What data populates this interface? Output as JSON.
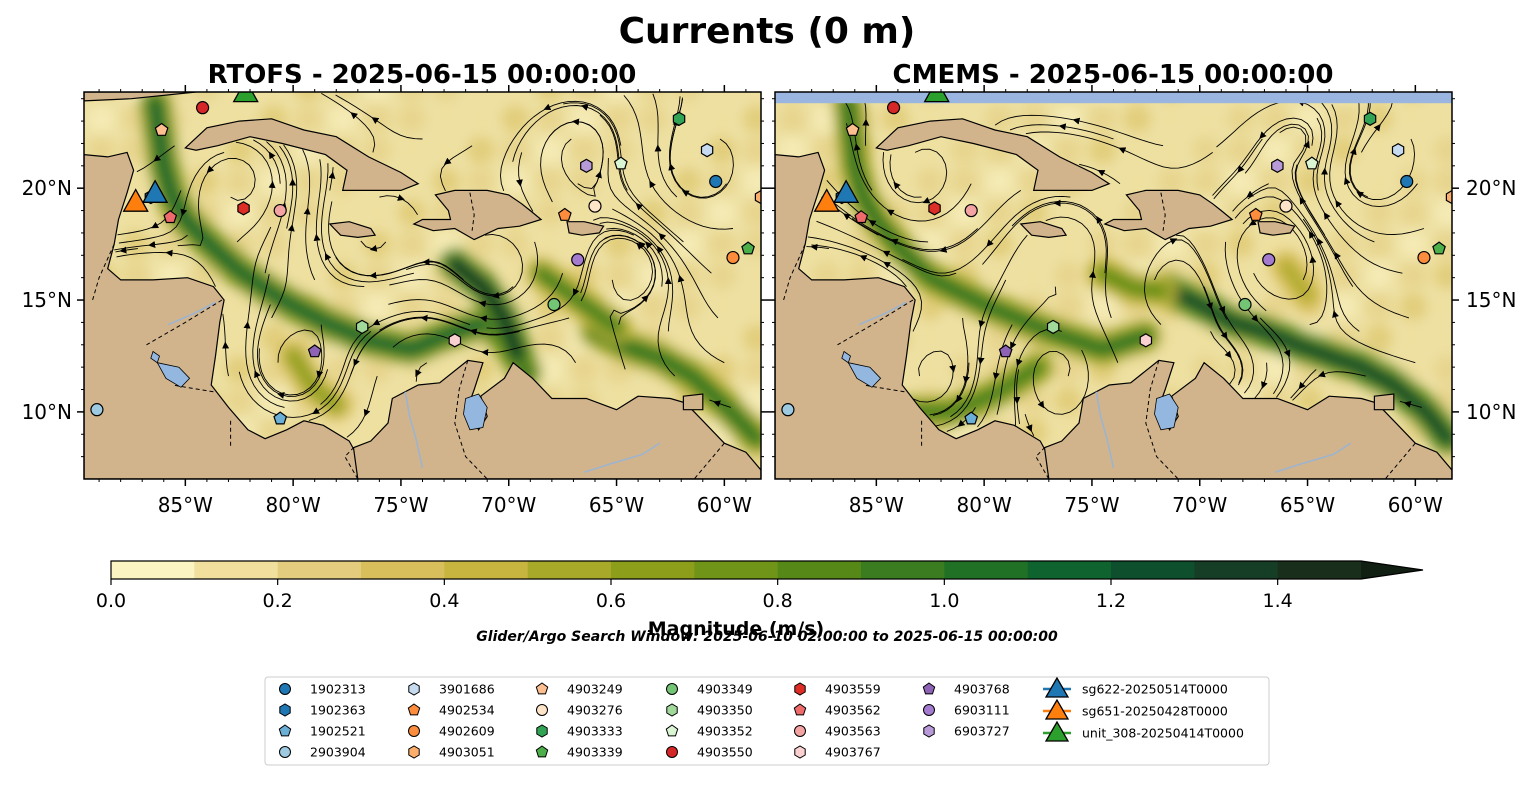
{
  "figure": {
    "title": "Currents (0 m)",
    "search_window": "Glider/Argo Search Window: 2025-06-10 02:00:00 to 2025-06-15 00:00:00"
  },
  "chart_data": {
    "type": "heatmap",
    "variable": "current magnitude",
    "panels": [
      {
        "title": "RTOFS - 2025-06-15 00:00:00",
        "extent": {
          "lon": [
            -89.7,
            -58.3
          ],
          "lat": [
            7.0,
            24.3
          ]
        },
        "xticks": [
          "85°W",
          "80°W",
          "75°W",
          "70°W",
          "65°W",
          "60°W"
        ],
        "yticks": [
          "10°N",
          "15°N",
          "20°N"
        ],
        "ytick_side": "left",
        "strong_jets": [
          {
            "path": [
              [
                -86.4,
                23.8
              ],
              [
                -86.0,
                21.0
              ],
              [
                -85.6,
                19.6
              ],
              [
                -85.0,
                18.6
              ],
              [
                -84.0,
                17.6
              ],
              [
                -82.5,
                16.3
              ],
              [
                -80.5,
                15.0
              ],
              [
                -78.5,
                14.0
              ],
              [
                -76.5,
                13.2
              ],
              [
                -74.5,
                12.8
              ],
              [
                -72.5,
                13.6
              ],
              [
                -71.0,
                14.0
              ],
              [
                -70.0,
                13.0
              ],
              [
                -69.2,
                11.8
              ]
            ],
            "m": 1.2
          },
          {
            "path": [
              [
                -72.5,
                16.6
              ],
              [
                -71.2,
                15.6
              ],
              [
                -70.2,
                14.2
              ],
              [
                -69.6,
                12.6
              ]
            ],
            "m": 1.45
          },
          {
            "path": [
              [
                -66.0,
                13.6
              ],
              [
                -64.5,
                12.9
              ],
              [
                -63.0,
                12.4
              ],
              [
                -61.5,
                11.6
              ],
              [
                -60.0,
                10.3
              ],
              [
                -58.5,
                8.8
              ]
            ],
            "m": 1.0
          },
          {
            "path": [
              [
                -68.5,
                16.2
              ],
              [
                -66.5,
                14.8
              ],
              [
                -65.0,
                13.8
              ]
            ],
            "m": 0.9
          },
          {
            "path": [
              [
                -88.5,
                12.0
              ],
              [
                -87.5,
                10.5
              ],
              [
                -87.0,
                8.5
              ]
            ],
            "m": 0.75
          },
          {
            "path": [
              [
                -80.0,
                12.5
              ],
              [
                -79.0,
                11.0
              ],
              [
                -78.0,
                10.3
              ]
            ],
            "m": 0.7
          }
        ],
        "land": {
          "dark_band_lat_min": 24.3
        }
      },
      {
        "title": "CMEMS - 2025-06-15 00:00:00",
        "extent": {
          "lon": [
            -89.7,
            -58.3
          ],
          "lat": [
            7.0,
            24.3
          ]
        },
        "xticks": [
          "85°W",
          "80°W",
          "75°W",
          "70°W",
          "65°W",
          "60°W"
        ],
        "yticks": [
          "10°N",
          "15°N",
          "20°N"
        ],
        "ytick_side": "right",
        "strong_jets": [
          {
            "path": [
              [
                -86.3,
                23.8
              ],
              [
                -86.0,
                21.0
              ],
              [
                -85.6,
                19.6
              ],
              [
                -85.0,
                18.6
              ],
              [
                -84.0,
                17.4
              ],
              [
                -82.5,
                16.0
              ],
              [
                -80.0,
                14.8
              ],
              [
                -77.0,
                13.6
              ],
              [
                -74.5,
                12.8
              ],
              [
                -72.5,
                13.4
              ]
            ],
            "m": 1.0
          },
          {
            "path": [
              [
                -87.5,
                11.6
              ],
              [
                -86.2,
                10.6
              ],
              [
                -84.0,
                10.0
              ],
              [
                -81.5,
                10.0
              ],
              [
                -79.5,
                10.8
              ],
              [
                -77.5,
                12.0
              ]
            ],
            "m": 0.95
          },
          {
            "path": [
              [
                -71.5,
                15.5
              ],
              [
                -70.0,
                14.8
              ],
              [
                -68.5,
                14.0
              ],
              [
                -67.0,
                13.6
              ],
              [
                -65.5,
                13.0
              ],
              [
                -64.0,
                12.5
              ],
              [
                -62.5,
                12.0
              ],
              [
                -61.0,
                11.2
              ],
              [
                -59.5,
                10.0
              ],
              [
                -58.5,
                8.8
              ]
            ],
            "m": 1.3
          },
          {
            "path": [
              [
                -74.5,
                16.2
              ],
              [
                -73.0,
                15.5
              ],
              [
                -71.8,
                15.4
              ]
            ],
            "m": 0.85
          },
          {
            "path": [
              [
                -66.0,
                16.5
              ],
              [
                -65.0,
                15.2
              ]
            ],
            "m": 0.6
          }
        ],
        "nodata_band_lat_min": 23.8
      }
    ],
    "colorbar": {
      "title": "Magnitude (m/s)",
      "min": 0.0,
      "max": 1.5,
      "step": 0.1,
      "extend": "max",
      "ticks": [
        "0.0",
        "0.2",
        "0.4",
        "0.6",
        "0.8",
        "1.0",
        "1.2",
        "1.4"
      ],
      "colormap": [
        "#fbf3c2",
        "#f1e09d",
        "#e4cc7e",
        "#d8bf5c",
        "#c7b53f",
        "#a9a929",
        "#8d9e1a",
        "#6f9417",
        "#558817",
        "#3b7c20",
        "#207026",
        "#0f632e",
        "#0e502d",
        "#163e26",
        "#1a2e1c",
        "#111f12"
      ]
    },
    "map_colors": {
      "land": "#d2b48c",
      "water": "#94b7e0",
      "river": "#9db4cf",
      "nodata": "#9ab5df"
    },
    "gliders": [
      {
        "name": "sg622-20250514T0000",
        "color": "#1f77b4",
        "lon": -86.4,
        "lat": 19.8
      },
      {
        "name": "sg651-20250428T0000",
        "color": "#ff7f0e",
        "lon": -87.3,
        "lat": 19.4
      },
      {
        "name": "unit_308-20250414T0000",
        "color": "#2ca02c",
        "lon": -82.2,
        "lat": 24.3
      }
    ],
    "floats": [
      {
        "name": "1902313",
        "marker": "circle",
        "color": "#1f77b4",
        "lon": -60.4,
        "lat": 20.3
      },
      {
        "name": "1902363",
        "marker": "hexagon",
        "color": "#1f77b4",
        "lon": -86.6,
        "lat": 19.6
      },
      {
        "name": "1902521",
        "marker": "pentagon",
        "color": "#6baed6",
        "lon": -80.6,
        "lat": 9.7
      },
      {
        "name": "2903904",
        "marker": "circle",
        "color": "#9ecae1",
        "lon": -89.1,
        "lat": 10.1
      },
      {
        "name": "3901686",
        "marker": "hexagon",
        "color": "#c6dbef",
        "lon": -60.8,
        "lat": 21.7
      },
      {
        "name": "4902534",
        "marker": "pentagon",
        "color": "#fd8d3c",
        "lon": -67.4,
        "lat": 18.8
      },
      {
        "name": "4902609",
        "marker": "circle",
        "color": "#fd8d3c",
        "lon": -59.6,
        "lat": 16.9
      },
      {
        "name": "4903051",
        "marker": "hexagon",
        "color": "#fdae6b",
        "lon": -58.3,
        "lat": 19.6
      },
      {
        "name": "4903249",
        "marker": "pentagon",
        "color": "#fdbf8f",
        "lon": -86.1,
        "lat": 22.6
      },
      {
        "name": "4903276",
        "marker": "circle",
        "color": "#fee4c8",
        "lon": -66.0,
        "lat": 19.2
      },
      {
        "name": "4903333",
        "marker": "hexagon",
        "color": "#31a354",
        "lon": -62.1,
        "lat": 23.1
      },
      {
        "name": "4903339",
        "marker": "pentagon",
        "color": "#4daf4a",
        "lon": -58.9,
        "lat": 17.3
      },
      {
        "name": "4903349",
        "marker": "circle",
        "color": "#74c476",
        "lon": -67.9,
        "lat": 14.8
      },
      {
        "name": "4903350",
        "marker": "hexagon",
        "color": "#a1d99b",
        "lon": -76.8,
        "lat": 13.8
      },
      {
        "name": "4903352",
        "marker": "pentagon",
        "color": "#d9f5d3",
        "lon": -64.8,
        "lat": 21.1
      },
      {
        "name": "4903550",
        "marker": "circle",
        "color": "#d62728",
        "lon": -84.2,
        "lat": 23.6
      },
      {
        "name": "4903559",
        "marker": "hexagon",
        "color": "#de2d26",
        "lon": -82.3,
        "lat": 19.1
      },
      {
        "name": "4903562",
        "marker": "pentagon",
        "color": "#ef6b6b",
        "lon": -85.7,
        "lat": 18.7
      },
      {
        "name": "4903563",
        "marker": "circle",
        "color": "#f4a3a3",
        "lon": -80.6,
        "lat": 19.0
      },
      {
        "name": "4903767",
        "marker": "hexagon",
        "color": "#fbd0d0",
        "lon": -72.5,
        "lat": 13.2
      },
      {
        "name": "4903768",
        "marker": "pentagon",
        "color": "#8e63b5",
        "lon": -79.0,
        "lat": 12.7
      },
      {
        "name": "6903111",
        "marker": "circle",
        "color": "#a57bd0",
        "lon": -66.8,
        "lat": 16.8
      },
      {
        "name": "6903727",
        "marker": "hexagon",
        "color": "#b99ad8",
        "lon": -66.4,
        "lat": 21.0
      }
    ],
    "legend": {
      "columns": [
        [
          "1902313",
          "1902363",
          "1902521",
          "2903904"
        ],
        [
          "3901686",
          "4902534",
          "4902609",
          "4903051"
        ],
        [
          "4903249",
          "4903276",
          "4903333",
          "4903339"
        ],
        [
          "4903349",
          "4903350",
          "4903352",
          "4903550"
        ],
        [
          "4903559",
          "4903562",
          "4903563",
          "4903767"
        ],
        [
          "4903768",
          "6903111",
          "6903727"
        ],
        [
          "sg622-20250514T0000",
          "sg651-20250428T0000",
          "unit_308-20250414T0000"
        ]
      ]
    }
  }
}
